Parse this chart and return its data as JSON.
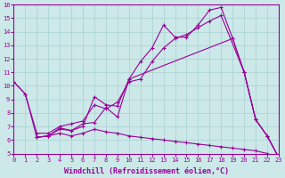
{
  "xlabel": "Windchill (Refroidissement éolien,°C)",
  "background_color": "#cce8e8",
  "line_color": "#990099",
  "xlim": [
    0,
    23
  ],
  "ylim": [
    5,
    16
  ],
  "xticks": [
    0,
    1,
    2,
    3,
    4,
    5,
    6,
    7,
    8,
    9,
    10,
    11,
    12,
    13,
    14,
    15,
    16,
    17,
    18,
    19,
    20,
    21,
    22,
    23
  ],
  "yticks": [
    5,
    6,
    7,
    8,
    9,
    10,
    11,
    12,
    13,
    14,
    15,
    16
  ],
  "line1_x": [
    0,
    1,
    2,
    3,
    4,
    5,
    6,
    7,
    8,
    9,
    10,
    11,
    12,
    13,
    14,
    15,
    16,
    17,
    18,
    19,
    20,
    21,
    22,
    23
  ],
  "line1_y": [
    10.3,
    9.4,
    6.2,
    6.3,
    6.9,
    6.7,
    7.0,
    9.2,
    8.6,
    8.5,
    10.5,
    11.8,
    12.8,
    14.5,
    13.6,
    13.6,
    14.5,
    15.6,
    15.8,
    13.5,
    11.0,
    7.5,
    6.3,
    4.7
  ],
  "line2_x": [
    0,
    1,
    2,
    3,
    4,
    5,
    6,
    7,
    8,
    9,
    10,
    11,
    12,
    13,
    14,
    15,
    16,
    17,
    18,
    20,
    21,
    22,
    23
  ],
  "line2_y": [
    10.3,
    9.4,
    6.5,
    6.5,
    7.0,
    7.2,
    7.4,
    8.6,
    8.3,
    8.8,
    10.3,
    10.5,
    11.8,
    12.8,
    13.5,
    13.8,
    14.3,
    14.8,
    15.2,
    11.0,
    7.5,
    6.3,
    4.7
  ],
  "line3_x": [
    2,
    3,
    4,
    5,
    6,
    7,
    8,
    9,
    10,
    19,
    20,
    21,
    22,
    23
  ],
  "line3_y": [
    6.2,
    6.3,
    6.8,
    6.7,
    7.2,
    7.3,
    8.4,
    7.7,
    10.5,
    13.5,
    11.0,
    7.5,
    6.3,
    4.7
  ],
  "line4_x": [
    2,
    3,
    4,
    5,
    6,
    7,
    8,
    9,
    10,
    11,
    12,
    13,
    14,
    15,
    16,
    17,
    18,
    19,
    20,
    21,
    22,
    23
  ],
  "line4_y": [
    6.2,
    6.3,
    6.5,
    6.3,
    6.5,
    6.8,
    6.6,
    6.5,
    6.3,
    6.2,
    6.1,
    6.0,
    5.9,
    5.8,
    5.7,
    5.6,
    5.5,
    5.4,
    5.3,
    5.2,
    5.0,
    4.7
  ]
}
